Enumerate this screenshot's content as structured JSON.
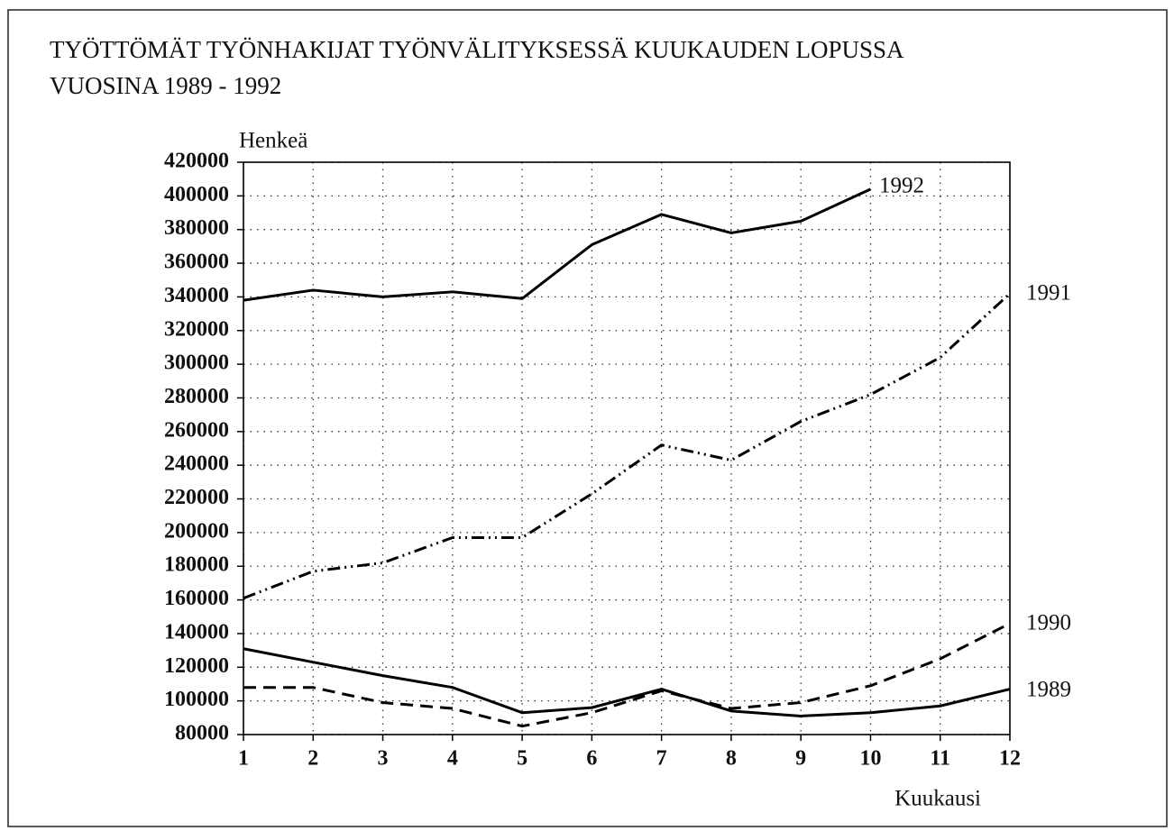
{
  "chart_data": {
    "type": "line",
    "title": [
      "TYÖTTÖMÄT TYÖNHAKIJAT TYÖNVÄLITYKSESSÄ KUUKAUDEN LOPUSSA",
      "VUOSINA 1989 - 1992"
    ],
    "y_label": "Henkeä",
    "x_label": "Kuukausi",
    "x": [
      1,
      2,
      3,
      4,
      5,
      6,
      7,
      8,
      9,
      10,
      11,
      12
    ],
    "xlim": [
      1,
      12
    ],
    "xticks": [
      1,
      2,
      3,
      4,
      5,
      6,
      7,
      8,
      9,
      10,
      11,
      12
    ],
    "ylim": [
      80000,
      420000
    ],
    "yticks": [
      80000,
      100000,
      120000,
      140000,
      160000,
      180000,
      200000,
      220000,
      240000,
      260000,
      280000,
      300000,
      320000,
      340000,
      360000,
      380000,
      400000,
      420000
    ],
    "grid": true,
    "series": [
      {
        "name": "1992",
        "color": "#000000",
        "linestyle": "solid",
        "values": [
          338000,
          344000,
          340000,
          343000,
          339000,
          371000,
          389000,
          378000,
          385000,
          404000,
          null,
          null
        ]
      },
      {
        "name": "1991",
        "color": "#000000",
        "linestyle": "dashdotdot",
        "values": [
          161000,
          177000,
          182000,
          197000,
          197000,
          223000,
          252000,
          243000,
          266000,
          282000,
          304000,
          342000
        ]
      },
      {
        "name": "1990",
        "color": "#000000",
        "linestyle": "dashed",
        "values": [
          108000,
          108000,
          99000,
          95500,
          85000,
          93000,
          106000,
          95500,
          99000,
          109000,
          125000,
          146000
        ]
      },
      {
        "name": "1989",
        "color": "#000000",
        "linestyle": "solid",
        "values": [
          131000,
          123000,
          115000,
          108000,
          93000,
          96000,
          107000,
          94000,
          91000,
          93000,
          97000,
          107000
        ]
      }
    ]
  }
}
